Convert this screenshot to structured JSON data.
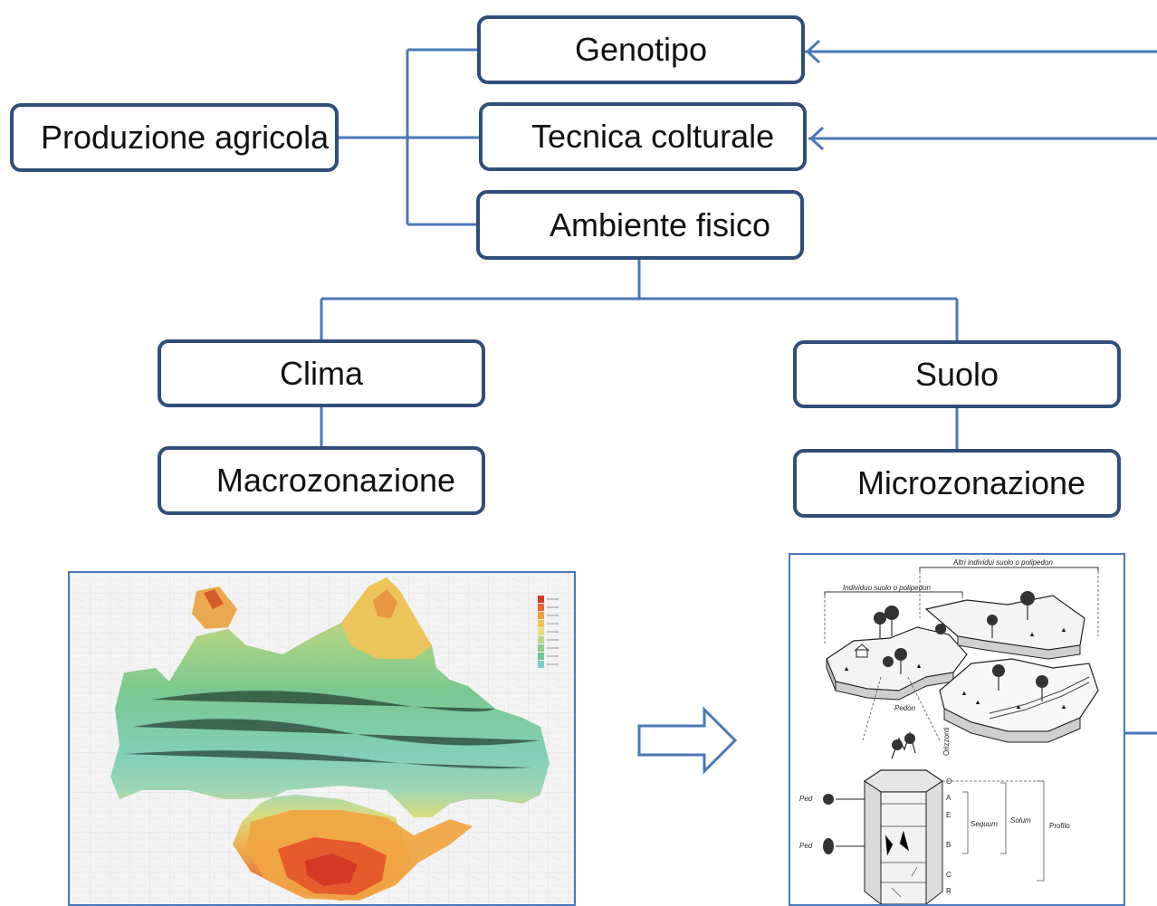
{
  "nodes": {
    "produzione": "Produzione agricola",
    "genotipo": "Genotipo",
    "tecnica": "Tecnica colturale",
    "ambiente": "Ambiente fisico",
    "clima": "Clima",
    "suolo": "Suolo",
    "macro": "Macrozonazione",
    "micro": "Microzonazione"
  },
  "soil_figure": {
    "altri": "Altri individui suolo o polipedon",
    "individuo": "Individuo suolo o polipedon",
    "pedon": "Pedon",
    "orizzonti": "Orizzonti",
    "ped1": "Ped",
    "ped2": "Ped",
    "horizons": [
      "O",
      "A",
      "E",
      "B",
      "C",
      "R"
    ],
    "sequum": "Sequum",
    "solum": "Solum",
    "profilo": "Profilo"
  },
  "map_legend_colors": [
    "#d93b2a",
    "#e9672e",
    "#f29b3c",
    "#f4c45a",
    "#e6df7a",
    "#b9d989",
    "#8fcf8c",
    "#6cc79a",
    "#7fcfc0",
    "#a8dcd8"
  ],
  "colors": {
    "border": "#2f4e7a",
    "connector": "#4a78b8"
  }
}
